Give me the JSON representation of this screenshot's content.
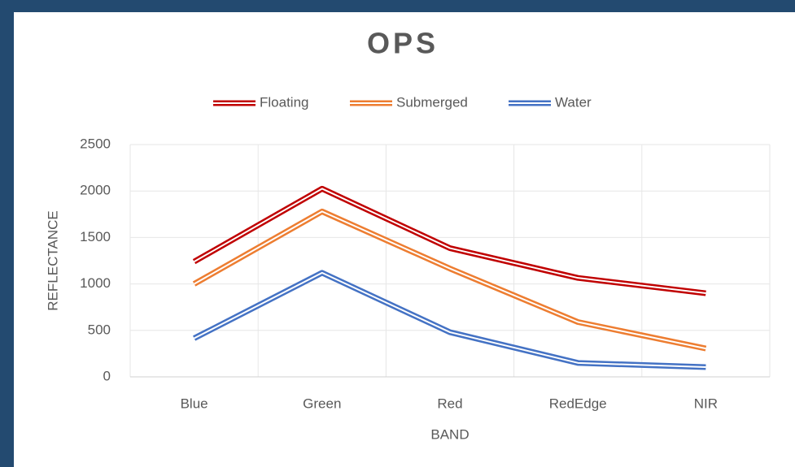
{
  "chart_data": {
    "type": "line",
    "title": "OPS",
    "x_label": "BAND",
    "y_label": "REFLECTANCE",
    "categories": [
      "Blue",
      "Green",
      "Red",
      "RedEdge",
      "NIR"
    ],
    "series": [
      {
        "name": "Floating",
        "color": "#c00000",
        "values": [
          1240,
          2025,
          1385,
          1065,
          900
        ]
      },
      {
        "name": "Submerged",
        "color": "#ed7d31",
        "values": [
          1000,
          1780,
          1165,
          590,
          305
        ]
      },
      {
        "name": "Water",
        "color": "#4472c4",
        "values": [
          415,
          1120,
          480,
          150,
          105
        ]
      }
    ],
    "ylim": [
      0,
      2500
    ],
    "yticks": [
      0,
      500,
      1000,
      1500,
      2000,
      2500
    ],
    "grid": true,
    "legend": "top"
  }
}
